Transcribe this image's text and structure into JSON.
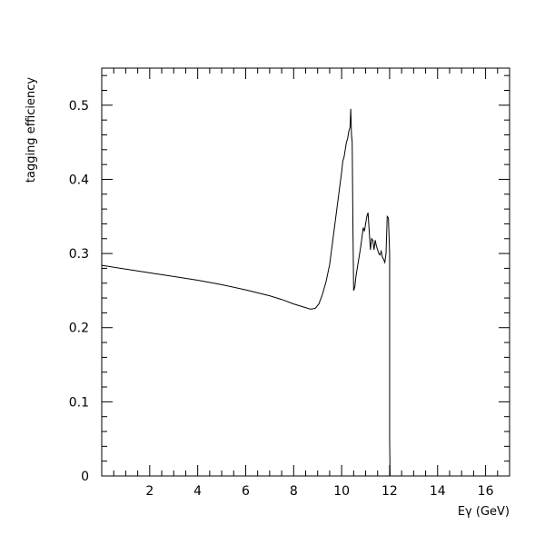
{
  "chart_data": {
    "type": "line",
    "title": "",
    "xlabel": "Eγ (GeV)",
    "ylabel": "tagging efficiency",
    "xlim": [
      0,
      17
    ],
    "ylim": [
      0,
      0.55
    ],
    "x_major_ticks": [
      2,
      4,
      6,
      8,
      10,
      12,
      14,
      16
    ],
    "x_tick_labels": [
      "2",
      "4",
      "6",
      "8",
      "10",
      "12",
      "14",
      "16"
    ],
    "x_minor_step": 0.5,
    "y_major_ticks": [
      0,
      0.1,
      0.2,
      0.3,
      0.4,
      0.5
    ],
    "y_tick_labels": [
      "0",
      "0.1",
      "0.2",
      "0.3",
      "0.4",
      "0.5"
    ],
    "y_minor_step": 0.02,
    "grid": false,
    "legend": "none",
    "line_color": "#000000",
    "series": [
      {
        "x": [
          0,
          1,
          2,
          3,
          4,
          5,
          6,
          7,
          7.5,
          8,
          8.4,
          8.7,
          8.9,
          9.05,
          9.2,
          9.35,
          9.5,
          9.6,
          9.7,
          9.8,
          9.9,
          10.0,
          10.05,
          10.1,
          10.15,
          10.2,
          10.25,
          10.3,
          10.35,
          10.38,
          10.41,
          10.44,
          10.47,
          10.5,
          10.55,
          10.6,
          10.7,
          10.8,
          10.9,
          10.95,
          11.0,
          11.05,
          11.1,
          11.15,
          11.2,
          11.25,
          11.3,
          11.35,
          11.4,
          11.45,
          11.5,
          11.55,
          11.6,
          11.65,
          11.7,
          11.75,
          11.8,
          11.85,
          11.9,
          11.95,
          12.0,
          12.0,
          12.02
        ],
        "y": [
          0.284,
          0.279,
          0.274,
          0.269,
          0.264,
          0.258,
          0.251,
          0.243,
          0.238,
          0.232,
          0.228,
          0.225,
          0.226,
          0.232,
          0.245,
          0.262,
          0.285,
          0.31,
          0.335,
          0.36,
          0.385,
          0.41,
          0.425,
          0.43,
          0.44,
          0.45,
          0.455,
          0.465,
          0.47,
          0.495,
          0.46,
          0.45,
          0.34,
          0.25,
          0.255,
          0.27,
          0.29,
          0.31,
          0.335,
          0.33,
          0.34,
          0.35,
          0.355,
          0.33,
          0.305,
          0.32,
          0.318,
          0.305,
          0.318,
          0.31,
          0.305,
          0.3,
          0.298,
          0.303,
          0.295,
          0.292,
          0.288,
          0.3,
          0.35,
          0.348,
          0.3,
          0.05,
          0.0
        ]
      }
    ]
  }
}
